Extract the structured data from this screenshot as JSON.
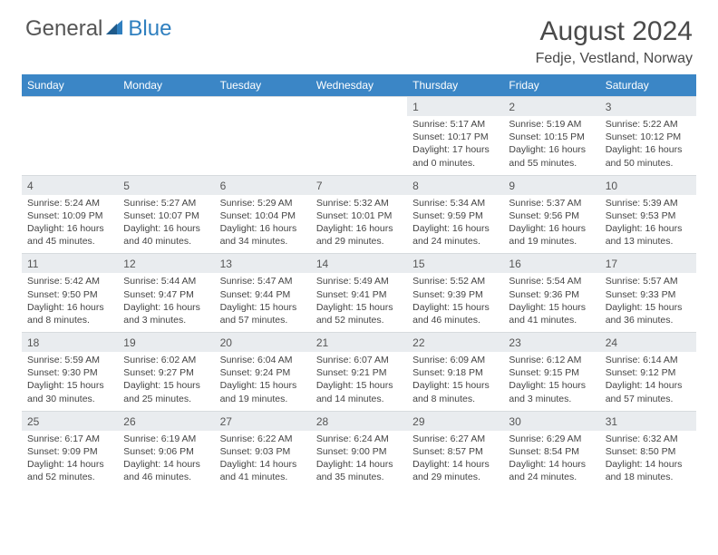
{
  "logo": {
    "general": "General",
    "blue": "Blue"
  },
  "title": {
    "month_year": "August 2024",
    "location": "Fedje, Vestland, Norway"
  },
  "colors": {
    "header_bg": "#3b86c6",
    "header_text": "#ffffff",
    "daynum_bg": "#e9ecef",
    "border": "#d7dbde",
    "body_bg": "#ffffff",
    "text": "#444444"
  },
  "weekdays": [
    "Sunday",
    "Monday",
    "Tuesday",
    "Wednesday",
    "Thursday",
    "Friday",
    "Saturday"
  ],
  "weeks": [
    {
      "nums": [
        "",
        "",
        "",
        "",
        "1",
        "2",
        "3"
      ],
      "cells": [
        null,
        null,
        null,
        null,
        {
          "sunrise": "Sunrise: 5:17 AM",
          "sunset": "Sunset: 10:17 PM",
          "day1": "Daylight: 17 hours",
          "day2": "and 0 minutes."
        },
        {
          "sunrise": "Sunrise: 5:19 AM",
          "sunset": "Sunset: 10:15 PM",
          "day1": "Daylight: 16 hours",
          "day2": "and 55 minutes."
        },
        {
          "sunrise": "Sunrise: 5:22 AM",
          "sunset": "Sunset: 10:12 PM",
          "day1": "Daylight: 16 hours",
          "day2": "and 50 minutes."
        }
      ]
    },
    {
      "nums": [
        "4",
        "5",
        "6",
        "7",
        "8",
        "9",
        "10"
      ],
      "cells": [
        {
          "sunrise": "Sunrise: 5:24 AM",
          "sunset": "Sunset: 10:09 PM",
          "day1": "Daylight: 16 hours",
          "day2": "and 45 minutes."
        },
        {
          "sunrise": "Sunrise: 5:27 AM",
          "sunset": "Sunset: 10:07 PM",
          "day1": "Daylight: 16 hours",
          "day2": "and 40 minutes."
        },
        {
          "sunrise": "Sunrise: 5:29 AM",
          "sunset": "Sunset: 10:04 PM",
          "day1": "Daylight: 16 hours",
          "day2": "and 34 minutes."
        },
        {
          "sunrise": "Sunrise: 5:32 AM",
          "sunset": "Sunset: 10:01 PM",
          "day1": "Daylight: 16 hours",
          "day2": "and 29 minutes."
        },
        {
          "sunrise": "Sunrise: 5:34 AM",
          "sunset": "Sunset: 9:59 PM",
          "day1": "Daylight: 16 hours",
          "day2": "and 24 minutes."
        },
        {
          "sunrise": "Sunrise: 5:37 AM",
          "sunset": "Sunset: 9:56 PM",
          "day1": "Daylight: 16 hours",
          "day2": "and 19 minutes."
        },
        {
          "sunrise": "Sunrise: 5:39 AM",
          "sunset": "Sunset: 9:53 PM",
          "day1": "Daylight: 16 hours",
          "day2": "and 13 minutes."
        }
      ]
    },
    {
      "nums": [
        "11",
        "12",
        "13",
        "14",
        "15",
        "16",
        "17"
      ],
      "cells": [
        {
          "sunrise": "Sunrise: 5:42 AM",
          "sunset": "Sunset: 9:50 PM",
          "day1": "Daylight: 16 hours",
          "day2": "and 8 minutes."
        },
        {
          "sunrise": "Sunrise: 5:44 AM",
          "sunset": "Sunset: 9:47 PM",
          "day1": "Daylight: 16 hours",
          "day2": "and 3 minutes."
        },
        {
          "sunrise": "Sunrise: 5:47 AM",
          "sunset": "Sunset: 9:44 PM",
          "day1": "Daylight: 15 hours",
          "day2": "and 57 minutes."
        },
        {
          "sunrise": "Sunrise: 5:49 AM",
          "sunset": "Sunset: 9:41 PM",
          "day1": "Daylight: 15 hours",
          "day2": "and 52 minutes."
        },
        {
          "sunrise": "Sunrise: 5:52 AM",
          "sunset": "Sunset: 9:39 PM",
          "day1": "Daylight: 15 hours",
          "day2": "and 46 minutes."
        },
        {
          "sunrise": "Sunrise: 5:54 AM",
          "sunset": "Sunset: 9:36 PM",
          "day1": "Daylight: 15 hours",
          "day2": "and 41 minutes."
        },
        {
          "sunrise": "Sunrise: 5:57 AM",
          "sunset": "Sunset: 9:33 PM",
          "day1": "Daylight: 15 hours",
          "day2": "and 36 minutes."
        }
      ]
    },
    {
      "nums": [
        "18",
        "19",
        "20",
        "21",
        "22",
        "23",
        "24"
      ],
      "cells": [
        {
          "sunrise": "Sunrise: 5:59 AM",
          "sunset": "Sunset: 9:30 PM",
          "day1": "Daylight: 15 hours",
          "day2": "and 30 minutes."
        },
        {
          "sunrise": "Sunrise: 6:02 AM",
          "sunset": "Sunset: 9:27 PM",
          "day1": "Daylight: 15 hours",
          "day2": "and 25 minutes."
        },
        {
          "sunrise": "Sunrise: 6:04 AM",
          "sunset": "Sunset: 9:24 PM",
          "day1": "Daylight: 15 hours",
          "day2": "and 19 minutes."
        },
        {
          "sunrise": "Sunrise: 6:07 AM",
          "sunset": "Sunset: 9:21 PM",
          "day1": "Daylight: 15 hours",
          "day2": "and 14 minutes."
        },
        {
          "sunrise": "Sunrise: 6:09 AM",
          "sunset": "Sunset: 9:18 PM",
          "day1": "Daylight: 15 hours",
          "day2": "and 8 minutes."
        },
        {
          "sunrise": "Sunrise: 6:12 AM",
          "sunset": "Sunset: 9:15 PM",
          "day1": "Daylight: 15 hours",
          "day2": "and 3 minutes."
        },
        {
          "sunrise": "Sunrise: 6:14 AM",
          "sunset": "Sunset: 9:12 PM",
          "day1": "Daylight: 14 hours",
          "day2": "and 57 minutes."
        }
      ]
    },
    {
      "nums": [
        "25",
        "26",
        "27",
        "28",
        "29",
        "30",
        "31"
      ],
      "cells": [
        {
          "sunrise": "Sunrise: 6:17 AM",
          "sunset": "Sunset: 9:09 PM",
          "day1": "Daylight: 14 hours",
          "day2": "and 52 minutes."
        },
        {
          "sunrise": "Sunrise: 6:19 AM",
          "sunset": "Sunset: 9:06 PM",
          "day1": "Daylight: 14 hours",
          "day2": "and 46 minutes."
        },
        {
          "sunrise": "Sunrise: 6:22 AM",
          "sunset": "Sunset: 9:03 PM",
          "day1": "Daylight: 14 hours",
          "day2": "and 41 minutes."
        },
        {
          "sunrise": "Sunrise: 6:24 AM",
          "sunset": "Sunset: 9:00 PM",
          "day1": "Daylight: 14 hours",
          "day2": "and 35 minutes."
        },
        {
          "sunrise": "Sunrise: 6:27 AM",
          "sunset": "Sunset: 8:57 PM",
          "day1": "Daylight: 14 hours",
          "day2": "and 29 minutes."
        },
        {
          "sunrise": "Sunrise: 6:29 AM",
          "sunset": "Sunset: 8:54 PM",
          "day1": "Daylight: 14 hours",
          "day2": "and 24 minutes."
        },
        {
          "sunrise": "Sunrise: 6:32 AM",
          "sunset": "Sunset: 8:50 PM",
          "day1": "Daylight: 14 hours",
          "day2": "and 18 minutes."
        }
      ]
    }
  ]
}
